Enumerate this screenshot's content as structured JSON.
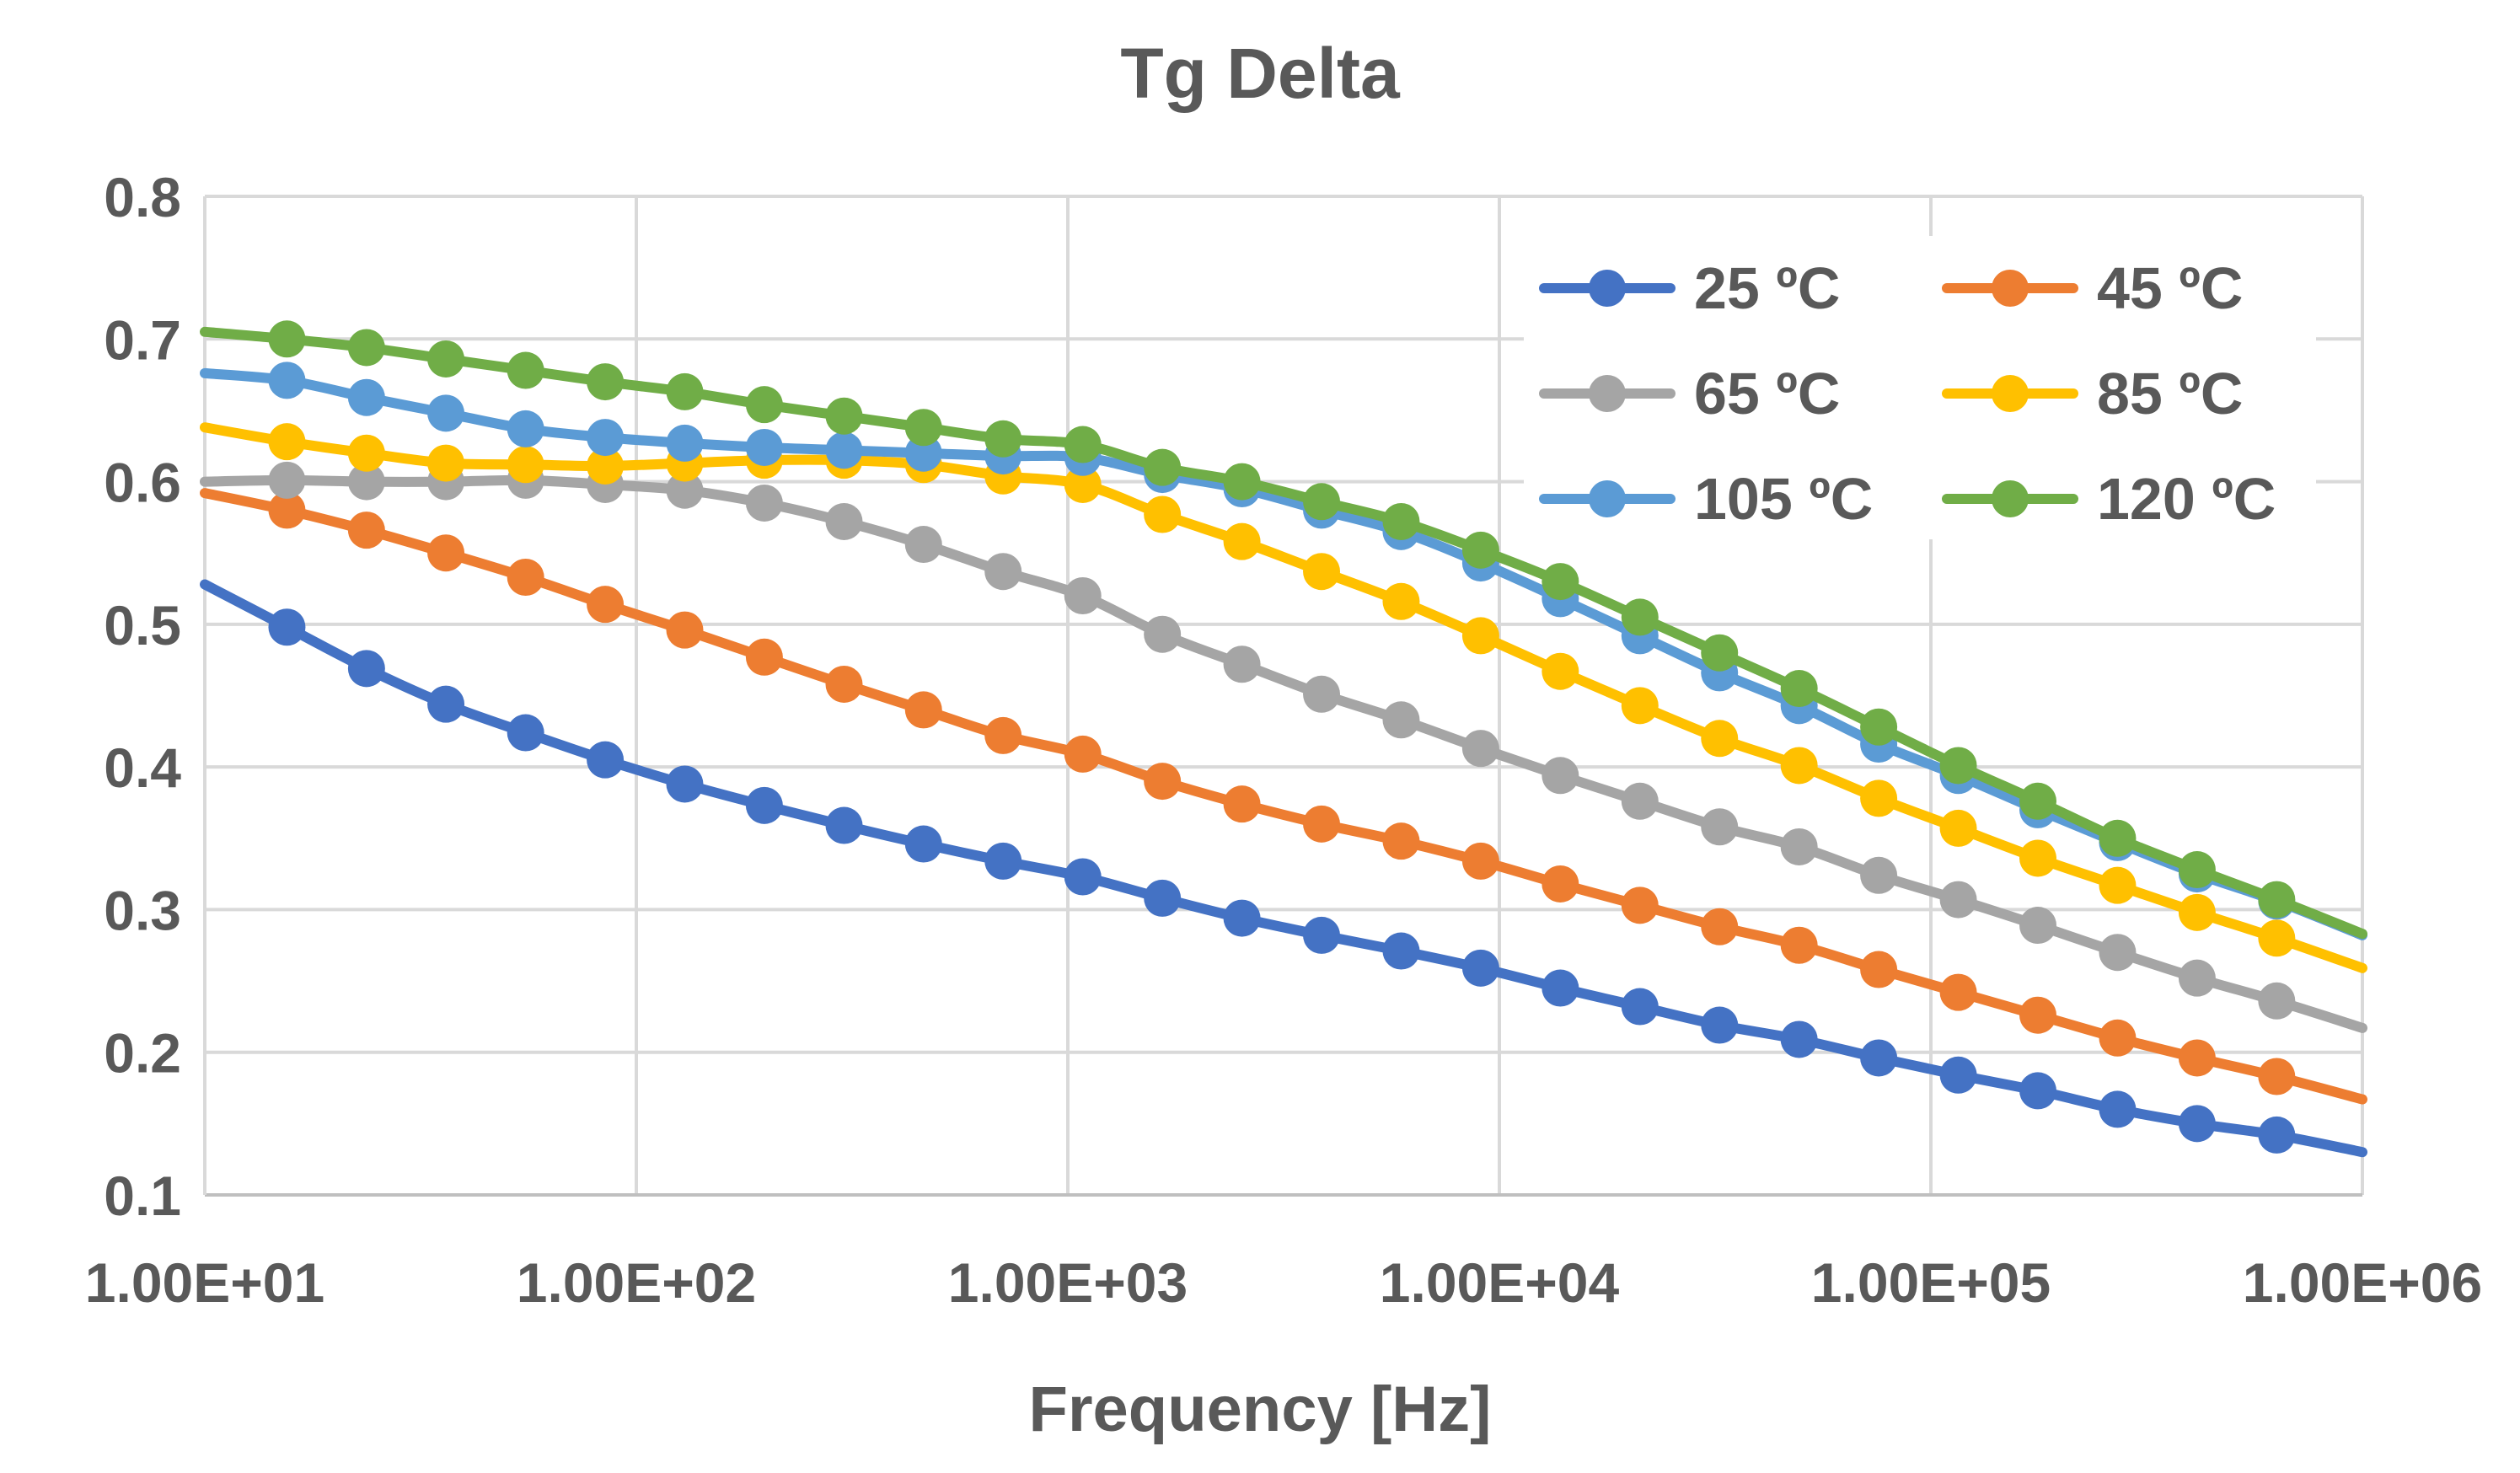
{
  "chart_data": {
    "type": "line",
    "title": "Tg Delta",
    "xlabel": "Frequency [Hz]",
    "ylabel": "",
    "xscale": "log",
    "xlim": [
      10,
      1000000
    ],
    "ylim": [
      0.1,
      0.8
    ],
    "yticks": [
      "0.1",
      "0.2",
      "0.3",
      "0.4",
      "0.5",
      "0.6",
      "0.7",
      "0.8"
    ],
    "xticks": [
      "1.00E+01",
      "1.00E+02",
      "1.00E+03",
      "1.00E+04",
      "1.00E+05",
      "1.00E+06"
    ],
    "grid": true,
    "legend_position": "top-right",
    "x": [
      15.5,
      23.7,
      36.2,
      55.4,
      84.7,
      129.5,
      198,
      303,
      463,
      708,
      1083,
      1656,
      2532,
      3872,
      5921,
      9054,
      13845,
      21172,
      32376,
      49508,
      75706,
      115768,
      177030,
      270710,
      413966,
      633032
    ],
    "series": [
      {
        "name": "25 ºC",
        "color": "#4472C4",
        "start": 0.528,
        "end": 0.13,
        "values": [
          0.498,
          0.469,
          0.444,
          0.424,
          0.405,
          0.388,
          0.373,
          0.359,
          0.346,
          0.334,
          0.323,
          0.308,
          0.294,
          0.282,
          0.271,
          0.259,
          0.245,
          0.232,
          0.219,
          0.209,
          0.196,
          0.184,
          0.173,
          0.16,
          0.15,
          0.142
        ]
      },
      {
        "name": "45 ºC",
        "color": "#ED7D31",
        "start": 0.592,
        "end": 0.167,
        "values": [
          0.58,
          0.566,
          0.55,
          0.533,
          0.514,
          0.496,
          0.477,
          0.458,
          0.44,
          0.422,
          0.409,
          0.39,
          0.374,
          0.36,
          0.348,
          0.334,
          0.318,
          0.303,
          0.288,
          0.275,
          0.258,
          0.242,
          0.226,
          0.21,
          0.196,
          0.183
        ]
      },
      {
        "name": "65 ºC",
        "color": "#A5A5A5",
        "start": 0.6,
        "end": 0.217,
        "values": [
          0.601,
          0.6,
          0.6,
          0.601,
          0.598,
          0.594,
          0.585,
          0.572,
          0.556,
          0.537,
          0.52,
          0.493,
          0.472,
          0.451,
          0.433,
          0.413,
          0.394,
          0.376,
          0.358,
          0.344,
          0.324,
          0.307,
          0.289,
          0.27,
          0.252,
          0.236
        ]
      },
      {
        "name": "85 ºC",
        "color": "#FFC000",
        "start": 0.638,
        "end": 0.259,
        "values": [
          0.628,
          0.62,
          0.613,
          0.612,
          0.611,
          0.613,
          0.615,
          0.615,
          0.612,
          0.604,
          0.598,
          0.577,
          0.558,
          0.537,
          0.516,
          0.492,
          0.467,
          0.443,
          0.42,
          0.401,
          0.378,
          0.357,
          0.336,
          0.317,
          0.298,
          0.28
        ]
      },
      {
        "name": "105 ºC",
        "color": "#5B9BD5",
        "start": 0.676,
        "end": 0.282,
        "values": [
          0.671,
          0.659,
          0.648,
          0.637,
          0.631,
          0.627,
          0.624,
          0.622,
          0.62,
          0.618,
          0.617,
          0.605,
          0.595,
          0.58,
          0.565,
          0.543,
          0.518,
          0.492,
          0.466,
          0.443,
          0.416,
          0.394,
          0.37,
          0.347,
          0.325,
          0.306
        ]
      },
      {
        "name": "120 ºC",
        "color": "#70AD47",
        "start": 0.705,
        "end": 0.283,
        "values": [
          0.7,
          0.694,
          0.686,
          0.678,
          0.67,
          0.663,
          0.654,
          0.646,
          0.638,
          0.63,
          0.626,
          0.61,
          0.6,
          0.586,
          0.572,
          0.552,
          0.53,
          0.505,
          0.48,
          0.455,
          0.428,
          0.401,
          0.376,
          0.35,
          0.328,
          0.307
        ]
      }
    ]
  }
}
